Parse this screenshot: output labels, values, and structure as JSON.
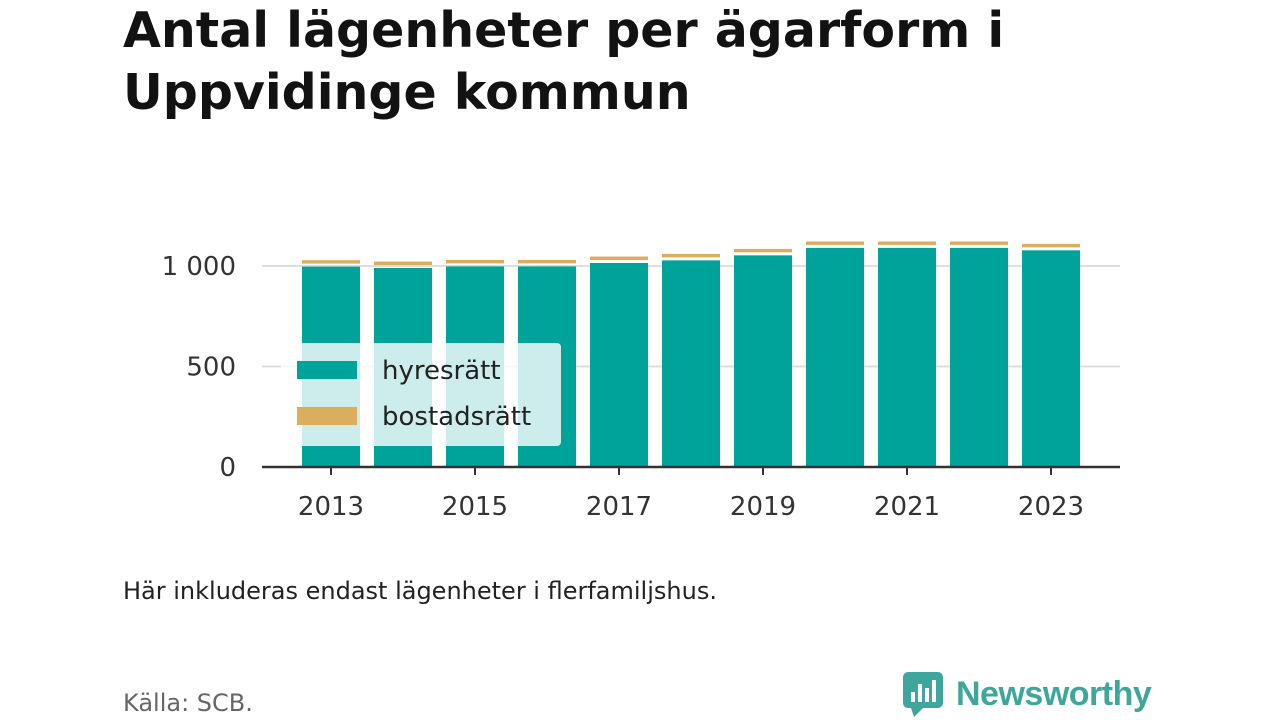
{
  "header": {
    "title": "Antal lägenheter per ägarform i Uppvidinge kommun"
  },
  "footer": {
    "note": "Här inkluderas endast lägenheter i flerfamiljshus.",
    "source": "Källa: SCB.",
    "brand": "Newsworthy",
    "brand_color": "#3ea69a"
  },
  "chart_data": {
    "type": "bar",
    "stacked": true,
    "categories": [
      "2013",
      "2014",
      "2015",
      "2016",
      "2017",
      "2018",
      "2019",
      "2020",
      "2021",
      "2022",
      "2023"
    ],
    "series": [
      {
        "name": "hyresrätt",
        "color": "#00a39a",
        "values": [
          997,
          990,
          998,
          998,
          1015,
          1028,
          1053,
          1090,
          1090,
          1090,
          1078
        ]
      },
      {
        "name": "bostadsrätt",
        "color": "#dbae5e",
        "values": [
          32,
          32,
          32,
          32,
          32,
          32,
          32,
          32,
          32,
          32,
          32
        ]
      }
    ],
    "x_tick_labels": [
      "2013",
      "2015",
      "2017",
      "2019",
      "2021",
      "2023"
    ],
    "y_ticks": [
      0,
      500,
      1000
    ],
    "y_tick_labels": [
      "0",
      "500",
      "1 000"
    ],
    "ylim": [
      0,
      1150
    ],
    "grid": true,
    "legend_position": "left-middle",
    "xlabel": "",
    "ylabel": ""
  }
}
